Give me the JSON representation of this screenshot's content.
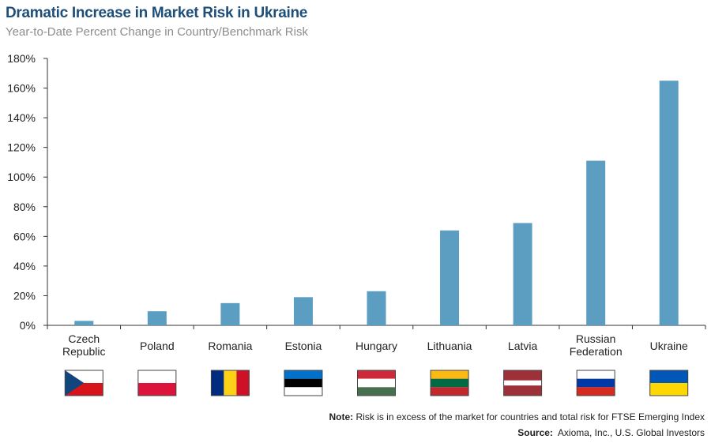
{
  "title": "Dramatic Increase in Market Risk in Ukraine",
  "subtitle": "Year-to-Date Percent Change in Country/Benchmark Risk",
  "chart_data": {
    "type": "bar",
    "categories": [
      "Czech Republic",
      "Poland",
      "Romania",
      "Estonia",
      "Hungary",
      "Lithuania",
      "Latvia",
      "Russian Federation",
      "Ukraine"
    ],
    "category_lines": [
      [
        "Czech",
        "Republic"
      ],
      [
        "Poland"
      ],
      [
        "Romania"
      ],
      [
        "Estonia"
      ],
      [
        "Hungary"
      ],
      [
        "Lithuania"
      ],
      [
        "Latvia"
      ],
      [
        "Russian",
        "Federation"
      ],
      [
        "Ukraine"
      ]
    ],
    "values": [
      3,
      9.5,
      15,
      19,
      23,
      64,
      69,
      111,
      165
    ],
    "ylim": [
      0,
      180
    ],
    "yticks": [
      0,
      20,
      40,
      60,
      80,
      100,
      120,
      140,
      160,
      180
    ],
    "ytick_labels": [
      "0%",
      "20%",
      "40%",
      "60%",
      "80%",
      "100%",
      "120%",
      "140%",
      "160%",
      "180%"
    ],
    "bar_color": "#5b9ec2",
    "grid": false
  },
  "flags": [
    {
      "country": "czech-republic",
      "kind": "czech"
    },
    {
      "country": "poland",
      "kind": "h",
      "colors": [
        "#ffffff",
        "#dc143c"
      ]
    },
    {
      "country": "romania",
      "kind": "v",
      "colors": [
        "#002b7f",
        "#fcd116",
        "#ce1126"
      ]
    },
    {
      "country": "estonia",
      "kind": "h",
      "colors": [
        "#0072ce",
        "#000000",
        "#ffffff"
      ]
    },
    {
      "country": "hungary",
      "kind": "h",
      "colors": [
        "#ce2939",
        "#ffffff",
        "#477050"
      ]
    },
    {
      "country": "lithuania",
      "kind": "h",
      "colors": [
        "#fdb913",
        "#006a44",
        "#c1272d"
      ]
    },
    {
      "country": "latvia",
      "kind": "latvia",
      "colors": [
        "#9e3039",
        "#ffffff"
      ]
    },
    {
      "country": "russian-federation",
      "kind": "h",
      "colors": [
        "#ffffff",
        "#0039a6",
        "#d52b1e"
      ]
    },
    {
      "country": "ukraine",
      "kind": "h",
      "colors": [
        "#0057b7",
        "#ffd700"
      ]
    }
  ],
  "footer": {
    "note_label": "Note:",
    "note_text": " Risk is in excess of the market for countries and total risk for FTSE Emerging Index",
    "source_label": "Source:",
    "source_text": "  Axioma, Inc., U.S. Global Investors"
  }
}
